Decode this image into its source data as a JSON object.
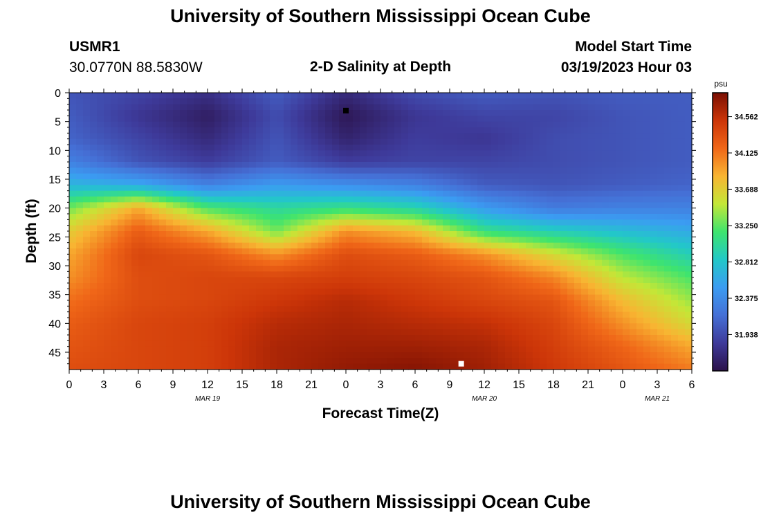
{
  "page": {
    "title": "University of Southern Mississippi Ocean Cube",
    "station_id": "USMR1",
    "coordinates": "30.0770N  88.5830W",
    "plot_title": "2-D Salinity at Depth",
    "model_start_label": "Model Start Time",
    "model_start_value": "03/19/2023 Hour 03",
    "bottom_title": "University of Southern Mississippi Ocean Cube"
  },
  "chart_data": {
    "type": "heatmap",
    "title": "2-D Salinity at Depth",
    "xlabel": "Forecast Time(Z)",
    "ylabel": "Depth (ft)",
    "x_tick_labels": [
      "0",
      "3",
      "6",
      "9",
      "12",
      "15",
      "18",
      "21",
      "0",
      "3",
      "6",
      "9",
      "12",
      "15",
      "18",
      "21",
      "0",
      "3",
      "6"
    ],
    "x_range_hours": [
      0,
      54
    ],
    "date_labels": [
      {
        "label": "MAR 19",
        "hour": 12
      },
      {
        "label": "MAR 20",
        "hour": 36
      },
      {
        "label": "MAR 21",
        "hour": 51
      }
    ],
    "y_tick_labels": [
      "0",
      "5",
      "10",
      "15",
      "20",
      "25",
      "30",
      "35",
      "40",
      "45"
    ],
    "y_ticks": [
      0,
      5,
      10,
      15,
      20,
      25,
      30,
      35,
      40,
      45
    ],
    "ylim": [
      0,
      48
    ],
    "y_inverted": true,
    "colorbar": {
      "unit": "psu",
      "min": 31.5,
      "max": 34.85,
      "ticks": [
        34.562,
        34.125,
        33.688,
        33.25,
        32.812,
        32.375,
        31.938
      ],
      "tick_labels": [
        "34.562",
        "34.125",
        "33.688",
        "33.250",
        "32.812",
        "32.375",
        "31.938"
      ]
    },
    "field_time_hours": [
      0,
      6,
      12,
      18,
      24,
      30,
      36,
      42,
      48,
      54
    ],
    "field_depth_ft": [
      0,
      4,
      8,
      12,
      16,
      20,
      24,
      28,
      32,
      36,
      40,
      44,
      48
    ],
    "salinity_field": [
      [
        32.0,
        31.9,
        31.75,
        32.05,
        31.7,
        31.95,
        32.05,
        32.0,
        32.05,
        32.05
      ],
      [
        32.05,
        31.8,
        31.6,
        31.95,
        31.55,
        31.8,
        31.9,
        31.9,
        32.0,
        32.05
      ],
      [
        32.1,
        31.9,
        31.7,
        32.0,
        31.65,
        31.85,
        31.8,
        31.95,
        32.0,
        32.05
      ],
      [
        32.3,
        32.0,
        31.85,
        32.05,
        31.85,
        31.9,
        31.9,
        31.95,
        32.0,
        32.05
      ],
      [
        32.7,
        32.6,
        32.3,
        32.5,
        32.4,
        32.3,
        32.05,
        32.0,
        32.05,
        32.1
      ],
      [
        33.3,
        33.9,
        33.2,
        33.0,
        33.1,
        32.95,
        32.5,
        32.25,
        32.3,
        32.3
      ],
      [
        33.7,
        34.25,
        33.9,
        33.3,
        34.0,
        33.8,
        33.1,
        32.9,
        32.75,
        32.6
      ],
      [
        33.9,
        34.4,
        34.3,
        34.0,
        34.35,
        34.25,
        34.0,
        33.6,
        33.2,
        32.9
      ],
      [
        34.0,
        34.35,
        34.4,
        34.4,
        34.45,
        34.4,
        34.3,
        34.05,
        33.5,
        33.2
      ],
      [
        34.15,
        34.35,
        34.4,
        34.5,
        34.6,
        34.5,
        34.4,
        34.3,
        33.8,
        33.4
      ],
      [
        34.25,
        34.4,
        34.45,
        34.6,
        34.65,
        34.6,
        34.55,
        34.4,
        34.0,
        33.6
      ],
      [
        34.3,
        34.4,
        34.45,
        34.65,
        34.7,
        34.7,
        34.65,
        34.45,
        34.2,
        33.9
      ],
      [
        34.35,
        34.4,
        34.45,
        34.65,
        34.75,
        34.8,
        34.7,
        34.5,
        34.3,
        34.1
      ]
    ],
    "markers": [
      {
        "name": "surface-marker",
        "color": "#000000",
        "hour": 24,
        "depth": 3.1
      },
      {
        "name": "bottom-marker",
        "color": "#ffffff",
        "hour": 34,
        "depth": 47.0
      }
    ]
  }
}
